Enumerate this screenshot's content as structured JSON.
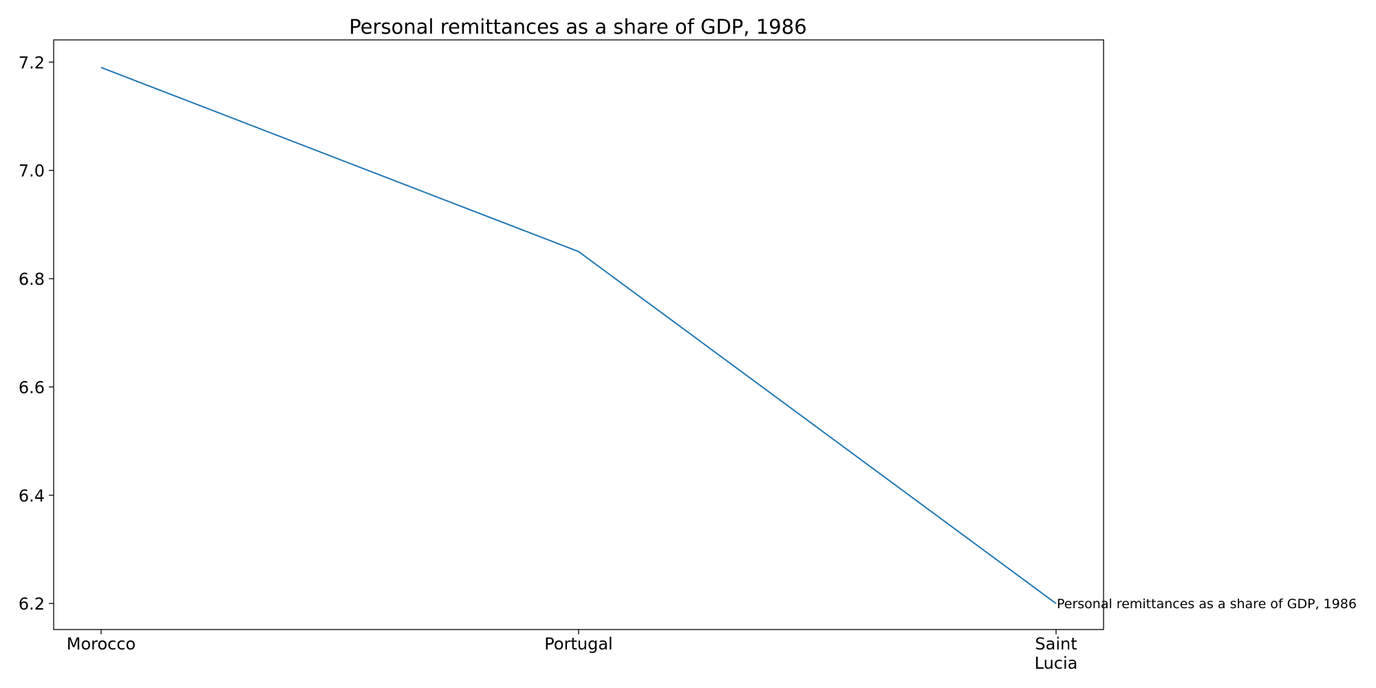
{
  "chart_data": {
    "type": "line",
    "title": "Personal remittances as a share of GDP, 1986",
    "xlabel": "",
    "ylabel": "",
    "categories": [
      "Morocco",
      "Portugal",
      "Saint Lucia"
    ],
    "category_tick_lines": [
      [
        "Morocco"
      ],
      [
        "Portugal"
      ],
      [
        "Saint",
        "Lucia"
      ]
    ],
    "series": [
      {
        "name": "Personal remittances as a share of GDP, 1986",
        "values": [
          7.19,
          6.85,
          6.2
        ],
        "color": "#1f77b4"
      }
    ],
    "ylim": [
      6.152,
      7.241
    ],
    "yticks": [
      6.2,
      6.4,
      6.6,
      6.8,
      7.0,
      7.2
    ],
    "ytick_labels": [
      "6.2",
      "6.4",
      "6.6",
      "6.8",
      "7.0",
      "7.2"
    ],
    "grid": false,
    "legend": "none",
    "series_label_placement": "end-of-line"
  }
}
